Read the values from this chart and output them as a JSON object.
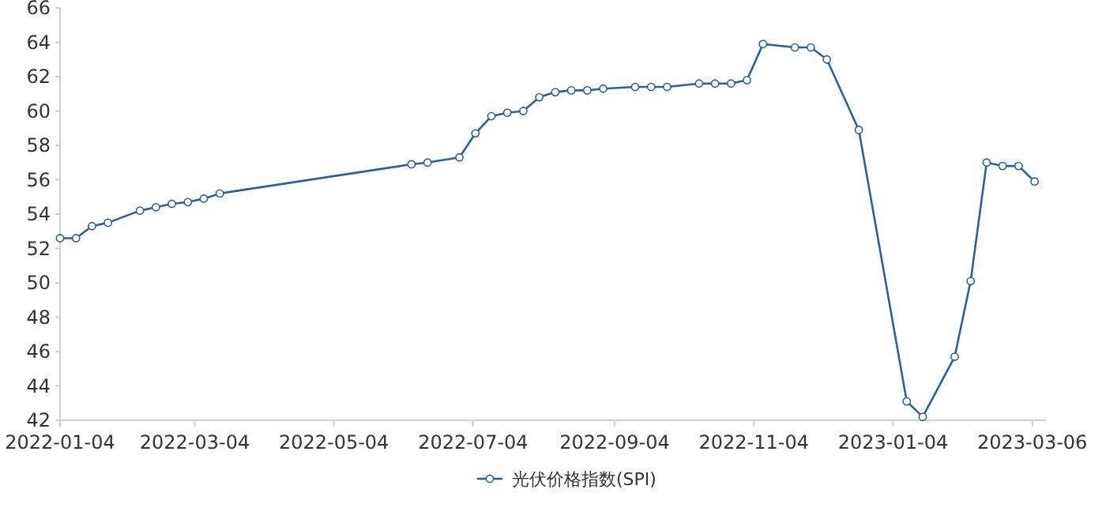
{
  "chart_data": {
    "type": "line",
    "x": [
      "2022-01-04",
      "2022-01-11",
      "2022-01-18",
      "2022-01-25",
      "2022-02-08",
      "2022-02-15",
      "2022-02-22",
      "2022-03-01",
      "2022-03-08",
      "2022-03-15",
      "2022-06-07",
      "2022-06-14",
      "2022-06-28",
      "2022-07-05",
      "2022-07-12",
      "2022-07-19",
      "2022-07-26",
      "2022-08-02",
      "2022-08-09",
      "2022-08-16",
      "2022-08-23",
      "2022-08-30",
      "2022-09-13",
      "2022-09-20",
      "2022-09-27",
      "2022-10-11",
      "2022-10-18",
      "2022-10-25",
      "2022-11-01",
      "2022-11-08",
      "2022-11-22",
      "2022-11-29",
      "2022-12-06",
      "2022-12-20",
      "2023-01-10",
      "2023-01-17",
      "2023-01-31",
      "2023-02-07",
      "2023-02-14",
      "2023-02-21",
      "2023-02-28",
      "2023-03-07"
    ],
    "series": [
      {
        "name": "光伏价格指数(SPI)",
        "color": "#2f5f98",
        "values": [
          52.6,
          52.6,
          53.3,
          53.5,
          54.2,
          54.4,
          54.6,
          54.7,
          54.9,
          55.2,
          56.9,
          57.0,
          57.3,
          58.7,
          59.7,
          59.9,
          60.0,
          60.8,
          61.1,
          61.2,
          61.2,
          61.3,
          61.4,
          61.4,
          61.4,
          61.6,
          61.6,
          61.6,
          61.8,
          63.9,
          63.7,
          63.7,
          63.0,
          58.9,
          43.1,
          42.2,
          45.7,
          50.1,
          57.0,
          56.8,
          56.8,
          55.9
        ]
      }
    ],
    "xlim": [
      "2022-01-04",
      "2023-03-12"
    ],
    "xticks": [
      "2022-01-04",
      "2022-03-04",
      "2022-05-04",
      "2022-07-04",
      "2022-09-04",
      "2022-11-04",
      "2023-01-04",
      "2023-03-06"
    ],
    "ylim": [
      42,
      66
    ],
    "yticks": [
      42,
      44,
      46,
      48,
      50,
      52,
      54,
      56,
      58,
      60,
      62,
      64,
      66
    ],
    "grid": false,
    "legend": "bottom",
    "marker": "circle",
    "line_style": "solid"
  }
}
